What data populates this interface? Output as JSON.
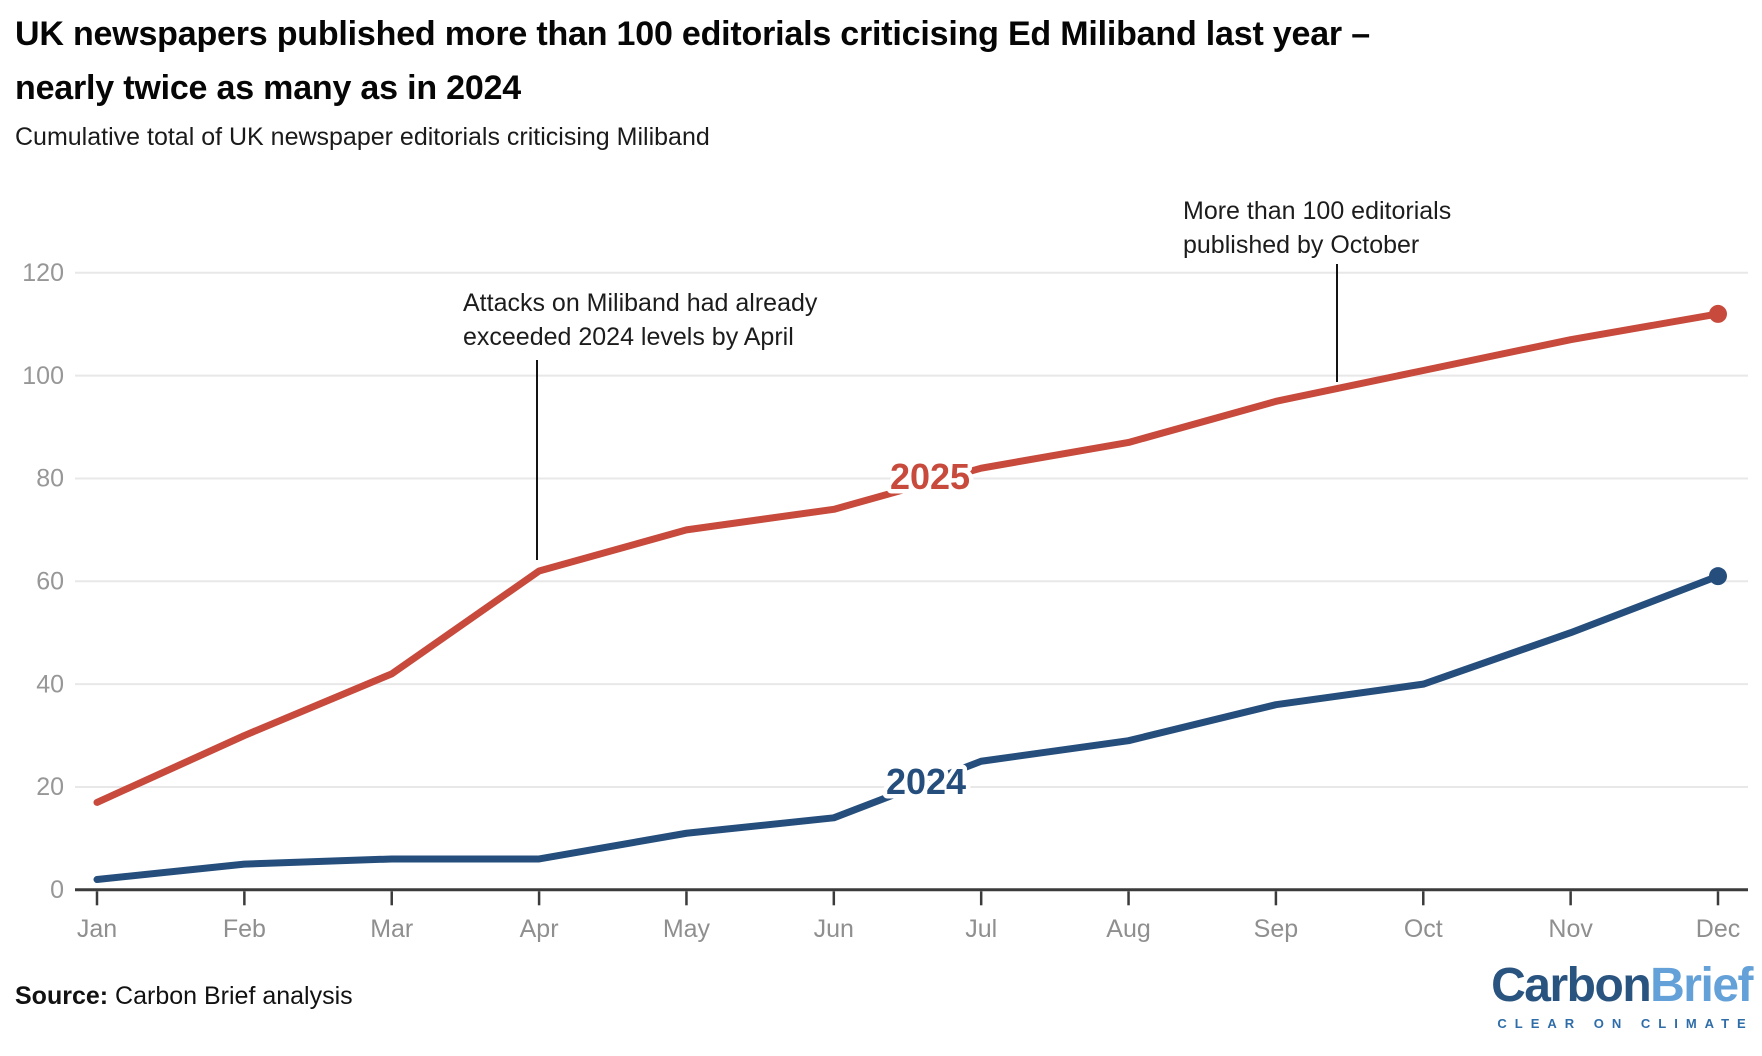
{
  "header": {
    "title": "UK newspapers published more than 100 editorials criticising Ed Miliband last year – nearly twice as many as in 2024",
    "subtitle": "Cumulative total of UK newspaper editorials criticising Miliband"
  },
  "chart_data": {
    "type": "line",
    "categories": [
      "Jan",
      "Feb",
      "Mar",
      "Apr",
      "May",
      "Jun",
      "Jul",
      "Aug",
      "Sep",
      "Oct",
      "Nov",
      "Dec"
    ],
    "series": [
      {
        "name": "2025",
        "color": "#c74a3c",
        "values": [
          17,
          30,
          42,
          62,
          70,
          74,
          82,
          87,
          95,
          101,
          107,
          112
        ],
        "end_dot": true
      },
      {
        "name": "2024",
        "color": "#254e7c",
        "values": [
          2,
          5,
          6,
          6,
          11,
          14,
          25,
          29,
          36,
          40,
          50,
          61
        ],
        "end_dot": true
      }
    ],
    "title": "UK newspapers published more than 100 editorials criticising Ed Miliband last year – nearly twice as many as in 2024",
    "xlabel": "",
    "ylabel": "",
    "ylim": [
      0,
      120
    ],
    "yticks": [
      0,
      20,
      40,
      60,
      80,
      100,
      120
    ],
    "grid": true,
    "legend_position": "inline-line-labels",
    "annotations": [
      {
        "lines": [
          "Attacks on Miliband had already",
          "exceeded 2024 levels by April"
        ],
        "points_to": "2025 line at Apr (value 62)"
      },
      {
        "lines": [
          "More than 100 editorials",
          "published by October"
        ],
        "points_to": "2025 line at Oct (value 101)"
      }
    ]
  },
  "footer": {
    "source_label": "Source:",
    "source_text": " Carbon Brief analysis",
    "logo": {
      "part1": "Carbon",
      "part2": "Brief",
      "tagline": "CLEAR ON CLIMATE",
      "color_dark": "#2a5480",
      "color_light": "#64a1d8",
      "tagline_color": "#2f6da8"
    }
  },
  "colors": {
    "grid": "#e8e8e8",
    "axis": "#3b3b3b",
    "annotation_line": "#141414"
  }
}
